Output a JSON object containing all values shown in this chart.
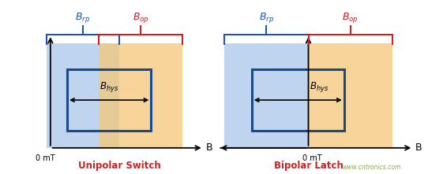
{
  "blue_fill": "#aac8ea",
  "orange_fill": "#f5c878",
  "line_color": "#1a4a8a",
  "blue_label_color": "#2255aa",
  "red_label_color": "#cc2222",
  "title1": "Unipolar Switch",
  "title2": "Bipolar Latch",
  "watermark": "www.cntronics.com",
  "watermark_color": "#88aa55"
}
